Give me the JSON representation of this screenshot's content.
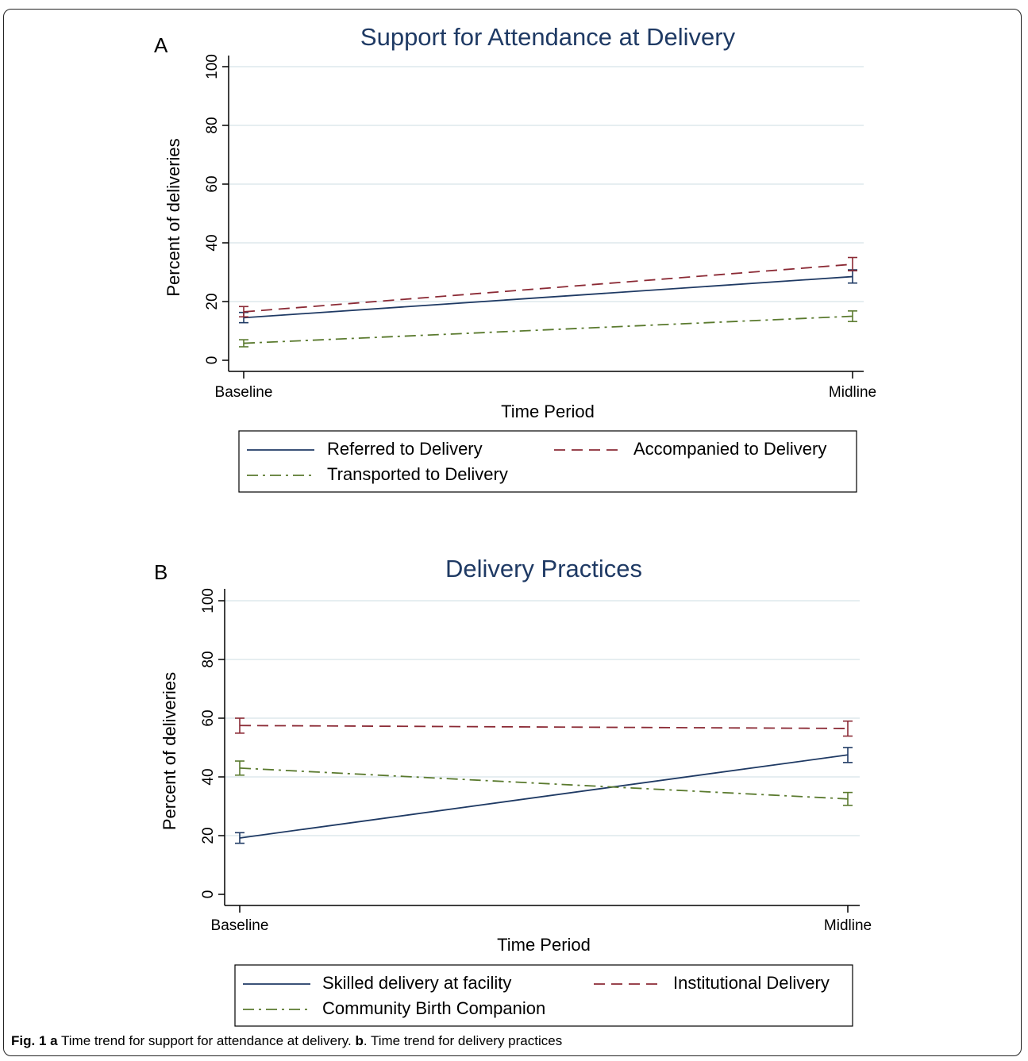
{
  "chart_data": [
    {
      "type": "line",
      "panel_label": "A",
      "title": "Support for Attendance at Delivery",
      "xlabel": "Time Period",
      "ylabel": "Percent of deliveries",
      "categories": [
        "Baseline",
        "Midline"
      ],
      "ylim": [
        0,
        100
      ],
      "yticks": [
        "0",
        "20",
        "40",
        "60",
        "80",
        "100"
      ],
      "grid": true,
      "legend_position": "bottom",
      "series": [
        {
          "name": "Referred to Delivery",
          "values": [
            14.5,
            28.5
          ],
          "ci_low": [
            12.8,
            26.3
          ],
          "ci_high": [
            16.3,
            30.8
          ],
          "color": "#1f3a64",
          "dash": "solid"
        },
        {
          "name": "Accompanied to Delivery",
          "values": [
            16.5,
            32.7
          ],
          "ci_low": [
            14.8,
            30.5
          ],
          "ci_high": [
            18.3,
            35.0
          ],
          "color": "#8b2a35",
          "dash": "dashed"
        },
        {
          "name": "Transported to Delivery",
          "values": [
            5.8,
            15.0
          ],
          "ci_low": [
            4.6,
            13.2
          ],
          "ci_high": [
            7.0,
            16.8
          ],
          "color": "#5a7a2e",
          "dash": "dashdot"
        }
      ]
    },
    {
      "type": "line",
      "panel_label": "B",
      "title": "Delivery Practices",
      "xlabel": "Time Period",
      "ylabel": "Percent of deliveries",
      "categories": [
        "Baseline",
        "Midline"
      ],
      "ylim": [
        0,
        100
      ],
      "yticks": [
        "0",
        "20",
        "40",
        "60",
        "80",
        "100"
      ],
      "grid": true,
      "legend_position": "bottom",
      "series": [
        {
          "name": "Skilled delivery at facility",
          "values": [
            19.2,
            47.5
          ],
          "ci_low": [
            17.4,
            44.9
          ],
          "ci_high": [
            21.0,
            50.0
          ],
          "color": "#1f3a64",
          "dash": "solid"
        },
        {
          "name": "Institutional Delivery",
          "values": [
            57.5,
            56.5
          ],
          "ci_low": [
            54.9,
            53.9
          ],
          "ci_high": [
            60.0,
            59.0
          ],
          "color": "#8b2a35",
          "dash": "dashed"
        },
        {
          "name": "Community Birth Companion",
          "values": [
            43.0,
            32.5
          ],
          "ci_low": [
            40.6,
            30.3
          ],
          "ci_high": [
            45.4,
            34.7
          ],
          "color": "#5a7a2e",
          "dash": "dashdot"
        }
      ]
    }
  ],
  "caption": {
    "fig_label": "Fig. 1",
    "a_label": "a",
    "a_text": " Time trend for support for attendance at delivery. ",
    "b_label": "b",
    "b_text": ". Time trend for delivery practices"
  }
}
